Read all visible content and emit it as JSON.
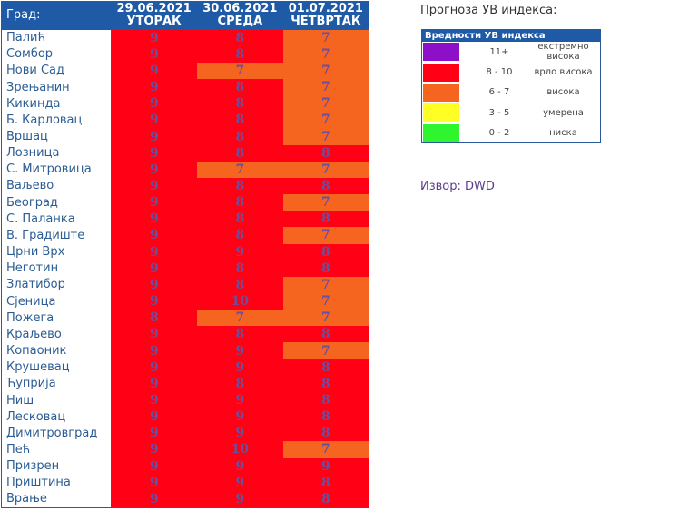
{
  "table": {
    "city_header": "Град:",
    "days": [
      {
        "date": "29.06.2021",
        "weekday": "УТОРАК"
      },
      {
        "date": "30.06.2021",
        "weekday": "СРЕДА"
      },
      {
        "date": "01.07.2021",
        "weekday": "ЧЕТВРТАК"
      }
    ],
    "rows": [
      {
        "city": "Палић",
        "values": [
          9,
          8,
          7
        ]
      },
      {
        "city": "Сомбор",
        "values": [
          9,
          8,
          7
        ]
      },
      {
        "city": "Нови Сад",
        "values": [
          9,
          7,
          7
        ]
      },
      {
        "city": "Зрењанин",
        "values": [
          9,
          8,
          7
        ]
      },
      {
        "city": "Кикинда",
        "values": [
          9,
          8,
          7
        ]
      },
      {
        "city": "Б. Карловац",
        "values": [
          9,
          8,
          7
        ]
      },
      {
        "city": "Вршац",
        "values": [
          9,
          8,
          7
        ]
      },
      {
        "city": "Лозница",
        "values": [
          9,
          8,
          8
        ]
      },
      {
        "city": "С. Митровица",
        "values": [
          9,
          7,
          7
        ]
      },
      {
        "city": "Ваљево",
        "values": [
          9,
          8,
          8
        ]
      },
      {
        "city": "Београд",
        "values": [
          9,
          8,
          7
        ]
      },
      {
        "city": "С. Паланка",
        "values": [
          9,
          8,
          8
        ]
      },
      {
        "city": "В. Градиште",
        "values": [
          9,
          8,
          7
        ]
      },
      {
        "city": "Црни Врх",
        "values": [
          9,
          9,
          8
        ]
      },
      {
        "city": "Неготин",
        "values": [
          9,
          8,
          8
        ]
      },
      {
        "city": "Златибор",
        "values": [
          9,
          8,
          7
        ]
      },
      {
        "city": "Сјеница",
        "values": [
          9,
          10,
          7
        ]
      },
      {
        "city": "Пожега",
        "values": [
          8,
          7,
          7
        ]
      },
      {
        "city": "Краљево",
        "values": [
          9,
          8,
          8
        ]
      },
      {
        "city": "Копаоник",
        "values": [
          9,
          9,
          7
        ]
      },
      {
        "city": "Крушевац",
        "values": [
          9,
          9,
          8
        ]
      },
      {
        "city": "Ћуприја",
        "values": [
          9,
          8,
          8
        ]
      },
      {
        "city": "Ниш",
        "values": [
          9,
          9,
          8
        ]
      },
      {
        "city": "Лесковац",
        "values": [
          9,
          9,
          8
        ]
      },
      {
        "city": "Димитровград",
        "values": [
          9,
          9,
          8
        ]
      },
      {
        "city": "Пећ",
        "values": [
          9,
          10,
          7
        ]
      },
      {
        "city": "Призрен",
        "values": [
          9,
          9,
          9
        ]
      },
      {
        "city": "Приштина",
        "values": [
          9,
          9,
          8
        ]
      },
      {
        "city": "Врање",
        "values": [
          9,
          9,
          8
        ]
      }
    ]
  },
  "legend": {
    "title": "Прогноза УВ индекса:",
    "header": "Вредности УВ индекса",
    "items": [
      {
        "range": "11+",
        "label": "екстремно висока",
        "color": "#8e0fc8"
      },
      {
        "range": "8 - 10",
        "label": "врло висока",
        "color": "#ff0015"
      },
      {
        "range": "6 - 7",
        "label": "висока",
        "color": "#f6651f"
      },
      {
        "range": "3 - 5",
        "label": "умерена",
        "color": "#ffff26"
      },
      {
        "range": "0 - 2",
        "label": "ниска",
        "color": "#2ef52e"
      }
    ]
  },
  "source": "Извор: DWD"
}
